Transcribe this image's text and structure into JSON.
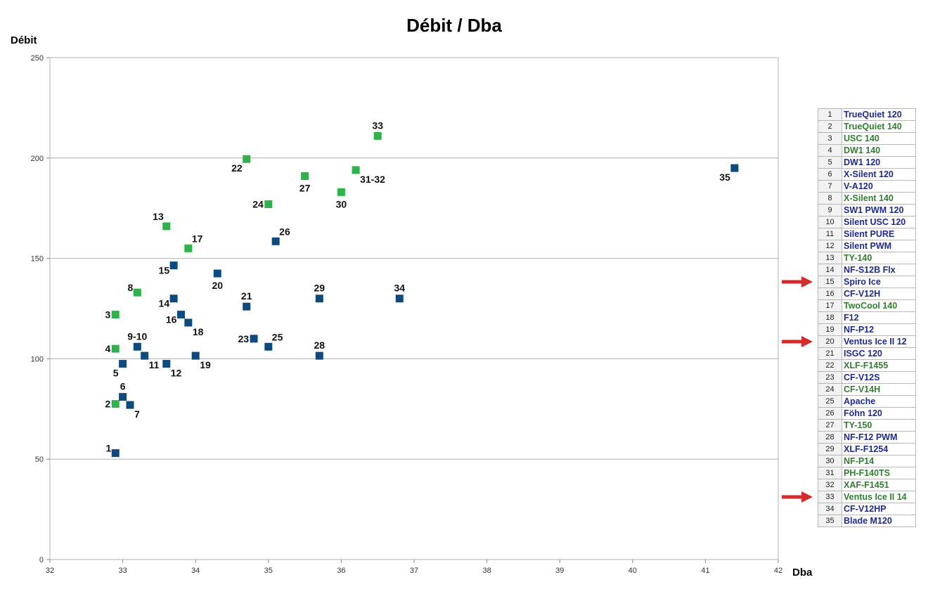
{
  "chart_data": {
    "type": "scatter",
    "title": "Débit / Dba",
    "xlabel": "Dba",
    "ylabel": "Débit",
    "xlim": [
      32,
      42
    ],
    "ylim": [
      0,
      250
    ],
    "xticks": [
      32,
      33,
      34,
      35,
      36,
      37,
      38,
      39,
      40,
      41,
      42
    ],
    "yticks": [
      0,
      50,
      100,
      150,
      200,
      250
    ],
    "grid": "horizontal",
    "colors": {
      "green": "#2db34a",
      "blue": "#0d4a80",
      "legend_green": "#2f7f2f",
      "legend_blue": "#1f2a8c",
      "arrow": "#d42a2a"
    },
    "points": [
      {
        "label": "1",
        "x": 32.9,
        "y": 53,
        "group": "blue",
        "pos": "left-above"
      },
      {
        "label": "2",
        "x": 32.9,
        "y": 77.5,
        "group": "green",
        "pos": "left"
      },
      {
        "label": "3",
        "x": 32.9,
        "y": 122,
        "group": "green",
        "pos": "left"
      },
      {
        "label": "4",
        "x": 32.9,
        "y": 105,
        "group": "green",
        "pos": "left"
      },
      {
        "label": "5",
        "x": 33.0,
        "y": 97.5,
        "group": "blue",
        "pos": "below-left"
      },
      {
        "label": "6",
        "x": 33.0,
        "y": 81,
        "group": "blue",
        "pos": "above"
      },
      {
        "label": "7",
        "x": 33.1,
        "y": 77,
        "group": "blue",
        "pos": "below-right"
      },
      {
        "label": "8",
        "x": 33.2,
        "y": 133,
        "group": "green",
        "pos": "left-above"
      },
      {
        "label": "9-10",
        "x": 33.2,
        "y": 106,
        "group": "blue",
        "pos": "above"
      },
      {
        "label": "11",
        "x": 33.3,
        "y": 101.5,
        "group": "blue",
        "pos": "below-right"
      },
      {
        "label": "12",
        "x": 33.6,
        "y": 97.5,
        "group": "blue",
        "pos": "below-right"
      },
      {
        "label": "13",
        "x": 33.6,
        "y": 166,
        "group": "green",
        "pos": "above-left"
      },
      {
        "label": "14",
        "x": 33.7,
        "y": 130,
        "group": "blue",
        "pos": "left-below"
      },
      {
        "label": "15",
        "x": 33.7,
        "y": 146.5,
        "group": "blue",
        "pos": "left-below"
      },
      {
        "label": "16",
        "x": 33.8,
        "y": 122,
        "group": "blue",
        "pos": "left-below"
      },
      {
        "label": "17",
        "x": 33.9,
        "y": 155,
        "group": "green",
        "pos": "above-right"
      },
      {
        "label": "18",
        "x": 33.9,
        "y": 118,
        "group": "blue",
        "pos": "below-right"
      },
      {
        "label": "19",
        "x": 34.0,
        "y": 101.5,
        "group": "blue",
        "pos": "below-right"
      },
      {
        "label": "20",
        "x": 34.3,
        "y": 142.5,
        "group": "blue",
        "pos": "below"
      },
      {
        "label": "21",
        "x": 34.7,
        "y": 126,
        "group": "blue",
        "pos": "above"
      },
      {
        "label": "22",
        "x": 34.7,
        "y": 199.5,
        "group": "green",
        "pos": "below-left"
      },
      {
        "label": "23",
        "x": 34.8,
        "y": 110,
        "group": "blue",
        "pos": "left"
      },
      {
        "label": "24",
        "x": 35.0,
        "y": 177,
        "group": "green",
        "pos": "left"
      },
      {
        "label": "25",
        "x": 35.0,
        "y": 106,
        "group": "blue",
        "pos": "above-right"
      },
      {
        "label": "26",
        "x": 35.1,
        "y": 158.5,
        "group": "blue",
        "pos": "above-right"
      },
      {
        "label": "27",
        "x": 35.5,
        "y": 191,
        "group": "green",
        "pos": "below"
      },
      {
        "label": "28",
        "x": 35.7,
        "y": 101.5,
        "group": "blue",
        "pos": "above"
      },
      {
        "label": "29",
        "x": 35.7,
        "y": 130,
        "group": "blue",
        "pos": "above"
      },
      {
        "label": "30",
        "x": 36.0,
        "y": 183,
        "group": "green",
        "pos": "below"
      },
      {
        "label": "31-32",
        "x": 36.2,
        "y": 194,
        "group": "green",
        "pos": "below-right"
      },
      {
        "label": "33",
        "x": 36.5,
        "y": 211,
        "group": "green",
        "pos": "above"
      },
      {
        "label": "34",
        "x": 36.8,
        "y": 130,
        "group": "blue",
        "pos": "above"
      },
      {
        "label": "35",
        "x": 41.4,
        "y": 195,
        "group": "blue",
        "pos": "below-left"
      }
    ],
    "legend": [
      {
        "n": "1",
        "name": "TrueQuiet 120",
        "group": "blue"
      },
      {
        "n": "2",
        "name": "TrueQuiet 140",
        "group": "green"
      },
      {
        "n": "3",
        "name": "USC 140",
        "group": "green"
      },
      {
        "n": "4",
        "name": "DW1 140",
        "group": "green"
      },
      {
        "n": "5",
        "name": "DW1 120",
        "group": "blue"
      },
      {
        "n": "6",
        "name": "X-Silent 120",
        "group": "blue"
      },
      {
        "n": "7",
        "name": "V-A120",
        "group": "blue"
      },
      {
        "n": "8",
        "name": "X-Silent 140",
        "group": "green"
      },
      {
        "n": "9",
        "name": "SW1 PWM 120",
        "group": "blue"
      },
      {
        "n": "10",
        "name": "Silent USC 120",
        "group": "blue"
      },
      {
        "n": "11",
        "name": "Silent PURE",
        "group": "blue"
      },
      {
        "n": "12",
        "name": "Silent PWM",
        "group": "blue"
      },
      {
        "n": "13",
        "name": "TY-140",
        "group": "green"
      },
      {
        "n": "14",
        "name": "NF-S12B Flx",
        "group": "blue"
      },
      {
        "n": "15",
        "name": "Spiro Ice",
        "group": "blue",
        "arrow": true
      },
      {
        "n": "16",
        "name": "CF-V12H",
        "group": "blue"
      },
      {
        "n": "17",
        "name": "TwoCool 140",
        "group": "green"
      },
      {
        "n": "18",
        "name": "F12",
        "group": "blue"
      },
      {
        "n": "19",
        "name": "NF-P12",
        "group": "blue"
      },
      {
        "n": "20",
        "name": "Ventus Ice II 12",
        "group": "blue",
        "arrow": true
      },
      {
        "n": "21",
        "name": "ISGC 120",
        "group": "blue"
      },
      {
        "n": "22",
        "name": "XLF-F1455",
        "group": "green"
      },
      {
        "n": "23",
        "name": "CF-V12S",
        "group": "blue"
      },
      {
        "n": "24",
        "name": "CF-V14H",
        "group": "green"
      },
      {
        "n": "25",
        "name": "Apache",
        "group": "blue"
      },
      {
        "n": "26",
        "name": "Föhn 120",
        "group": "blue"
      },
      {
        "n": "27",
        "name": "TY-150",
        "group": "green"
      },
      {
        "n": "28",
        "name": "NF-F12 PWM",
        "group": "blue"
      },
      {
        "n": "29",
        "name": "XLF-F1254",
        "group": "blue"
      },
      {
        "n": "30",
        "name": "NF-P14",
        "group": "green"
      },
      {
        "n": "31",
        "name": "PH-F140TS",
        "group": "green"
      },
      {
        "n": "32",
        "name": "XAF-F1451",
        "group": "green"
      },
      {
        "n": "33",
        "name": "Ventus Ice II 14",
        "group": "green",
        "arrow": true
      },
      {
        "n": "34",
        "name": "CF-V12HP",
        "group": "blue"
      },
      {
        "n": "35",
        "name": "Blade M120",
        "group": "blue"
      }
    ]
  }
}
